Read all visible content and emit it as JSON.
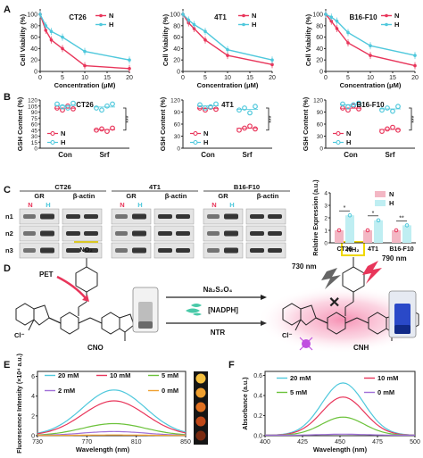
{
  "colors": {
    "N": "#e8355a",
    "H": "#4fc8dc",
    "axis": "#222222",
    "blot_bg": "#e4e4e4",
    "band": "#161616",
    "barN": "#f3b7c4",
    "barH": "#bfeef2"
  },
  "panel_letters": [
    "A",
    "B",
    "C",
    "D",
    "E",
    "F"
  ],
  "panel_a": {
    "ylabel": "Cell Viability (%)",
    "xlabel": "Concentration (μM)",
    "legend": [
      "N",
      "H"
    ],
    "charts": [
      {
        "title": "CT26",
        "x": [
          0,
          1.25,
          2.5,
          5,
          10,
          20
        ],
        "N": [
          100,
          72,
          55,
          40,
          10,
          5
        ],
        "H": [
          100,
          80,
          70,
          60,
          35,
          20
        ]
      },
      {
        "title": "4T1",
        "x": [
          0,
          1.25,
          2.5,
          5,
          10,
          20
        ],
        "N": [
          100,
          85,
          75,
          55,
          28,
          12
        ],
        "H": [
          100,
          90,
          82,
          70,
          38,
          20
        ]
      },
      {
        "title": "B16-F10",
        "x": [
          0,
          1.25,
          2.5,
          5,
          10,
          20
        ],
        "N": [
          100,
          88,
          75,
          50,
          28,
          10
        ],
        "H": [
          100,
          95,
          88,
          68,
          45,
          28
        ]
      }
    ],
    "xticks": [
      "0",
      "5",
      "10",
      "15",
      "20"
    ],
    "yticks": [
      "0",
      "20",
      "40",
      "60",
      "80",
      "100"
    ]
  },
  "panel_b": {
    "ylabel": "GSH Content (%)",
    "groups": [
      "Con",
      "Srf"
    ],
    "legend": [
      "N",
      "H"
    ],
    "sig": "***",
    "yticks": [
      "0",
      "15",
      "30",
      "45",
      "60",
      "75",
      "90",
      "105",
      "120"
    ],
    "charts": [
      {
        "title": "CT26",
        "con_N": [
          100,
          95,
          105,
          98
        ],
        "con_H": [
          110,
          103,
          100,
          112
        ],
        "srf_N": [
          45,
          48,
          42,
          50
        ],
        "srf_H": [
          100,
          95,
          105,
          110
        ]
      },
      {
        "title": "4T1",
        "con_N": [
          100,
          95,
          102,
          97
        ],
        "con_H": [
          108,
          100,
          103,
          110
        ],
        "srf_N": [
          45,
          50,
          55,
          48
        ],
        "srf_H": [
          95,
          100,
          88,
          104
        ]
      },
      {
        "title": "B16-F10",
        "con_N": [
          100,
          95,
          105,
          98
        ],
        "con_H": [
          110,
          103,
          108,
          112
        ],
        "srf_N": [
          42,
          48,
          52,
          45
        ],
        "srf_H": [
          95,
          100,
          92,
          104
        ]
      }
    ]
  },
  "panel_c": {
    "cell_lines": [
      "CT26",
      "4T1",
      "B16-F10"
    ],
    "gr": "GR",
    "actin": "β-actin",
    "lane_n": "N",
    "lane_h": "H",
    "rows": [
      "n1",
      "n2",
      "n3"
    ],
    "ylabel": "Relative Expression (a.u.)",
    "yticks": [
      "0",
      "1",
      "2",
      "3",
      "4"
    ],
    "legend": [
      "N",
      "H"
    ],
    "bar_N": [
      1.0,
      1.0,
      1.0
    ],
    "bar_H": [
      2.2,
      1.8,
      1.4
    ],
    "sig": [
      "*",
      "*",
      "**"
    ]
  },
  "panel_d": {
    "reagent_top": "Na₂S₂O₄",
    "reagent_mid": "[NADPH]",
    "reagent_bottom": "NTR",
    "pet": "PET",
    "no2": "NO₂",
    "nh2": "NH₂",
    "cno": "CNO",
    "cnh": "CNH",
    "cl": "Cl⁻",
    "ex": "730 nm",
    "em": "790 nm"
  },
  "panel_e": {
    "ylabel": "Fluorescence Intensity (×10⁴ a.u.)",
    "xlabel": "Wavelength (nm)",
    "xticks": [
      "730",
      "770",
      "810",
      "850"
    ],
    "yticks": [
      "0",
      "2",
      "4",
      "6"
    ],
    "series": [
      {
        "name": "20 mM",
        "color": "#4fc8dc",
        "peak": 4.6
      },
      {
        "name": "10 mM",
        "color": "#e8355a",
        "peak": 3.5
      },
      {
        "name": "5 mM",
        "color": "#6bc23a",
        "peak": 1.2
      },
      {
        "name": "2 mM",
        "color": "#a070d8",
        "peak": 0.4
      },
      {
        "name": "0 mM",
        "color": "#f0a030",
        "peak": 0.05
      }
    ]
  },
  "panel_f": {
    "ylabel": "Absorbance (a.u.)",
    "xlabel": "Wavelength (nm)",
    "xticks": [
      "400",
      "425",
      "450",
      "475",
      "500"
    ],
    "yticks": [
      "0.0",
      "0.2",
      "0.4",
      "0.6"
    ],
    "series": [
      {
        "name": "20 mM",
        "color": "#4fc8dc",
        "peak": 0.52
      },
      {
        "name": "10 mM",
        "color": "#e8355a",
        "peak": 0.38
      },
      {
        "name": "5 mM",
        "color": "#6bc23a",
        "peak": 0.18
      },
      {
        "name": "0 mM",
        "color": "#a070d8",
        "peak": 0.01
      }
    ]
  }
}
